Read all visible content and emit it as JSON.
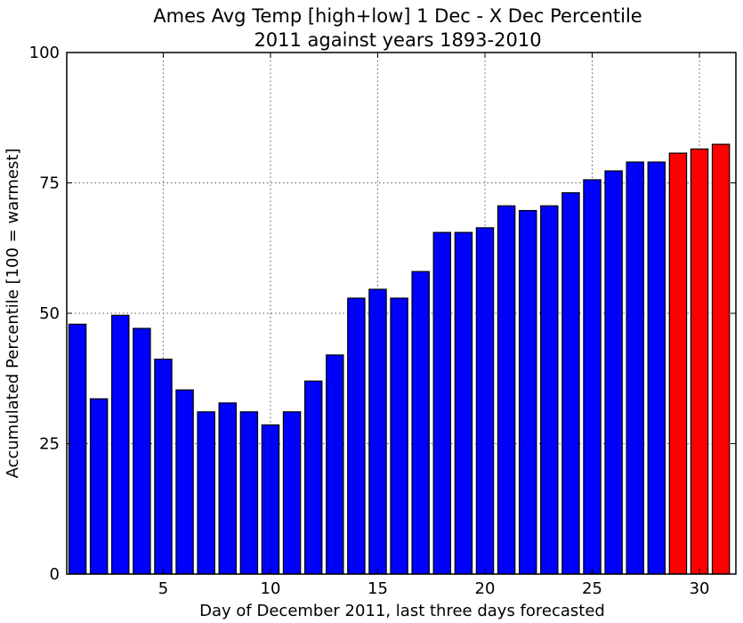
{
  "chart_data": {
    "type": "bar",
    "title": "Ames Avg Temp [high+low] 1 Dec - X Dec Percentile",
    "subtitle": "2011 against years 1893-2010",
    "xlabel": "Day of December 2011, last three days forecasted",
    "ylabel": "Accumulated Percentile [100 = warmest]",
    "x": [
      1,
      2,
      3,
      4,
      5,
      6,
      7,
      8,
      9,
      10,
      11,
      12,
      13,
      14,
      15,
      16,
      17,
      18,
      19,
      20,
      21,
      22,
      23,
      24,
      25,
      26,
      27,
      28,
      29,
      30,
      31
    ],
    "values": [
      47.9,
      33.6,
      49.6,
      47.1,
      41.2,
      35.3,
      31.1,
      32.8,
      31.1,
      28.6,
      31.1,
      37.0,
      42.0,
      52.9,
      54.6,
      52.9,
      58.0,
      65.5,
      65.5,
      66.4,
      70.6,
      69.7,
      70.6,
      73.1,
      75.6,
      77.3,
      79.0,
      79.0,
      80.7,
      81.5,
      82.4
    ],
    "bar_colors": [
      "#0000ff",
      "#0000ff",
      "#0000ff",
      "#0000ff",
      "#0000ff",
      "#0000ff",
      "#0000ff",
      "#0000ff",
      "#0000ff",
      "#0000ff",
      "#0000ff",
      "#0000ff",
      "#0000ff",
      "#0000ff",
      "#0000ff",
      "#0000ff",
      "#0000ff",
      "#0000ff",
      "#0000ff",
      "#0000ff",
      "#0000ff",
      "#0000ff",
      "#0000ff",
      "#0000ff",
      "#0000ff",
      "#0000ff",
      "#0000ff",
      "#0000ff",
      "#ff0000",
      "#ff0000",
      "#ff0000"
    ],
    "observed_color": "#0000ff",
    "forecast_color": "#ff0000",
    "ylim": [
      0,
      100
    ],
    "xlim": [
      0.5,
      31.7
    ],
    "xticks": [
      5,
      10,
      15,
      20,
      25,
      30
    ],
    "yticks": [
      0,
      25,
      50,
      75,
      100
    ],
    "grid": true
  }
}
